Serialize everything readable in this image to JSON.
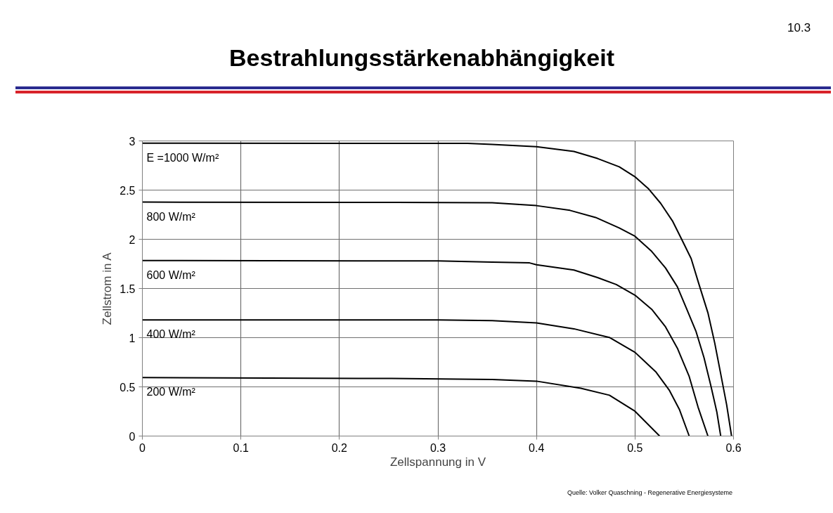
{
  "chart_data": {
    "type": "line",
    "title": "Bestrahlungsstärkenabhängigkeit",
    "xlabel": "Zellspannung in V",
    "ylabel": "Zellstrom in A",
    "xlim": [
      0,
      0.6
    ],
    "ylim": [
      0,
      3
    ],
    "xticks": [
      0,
      0.1,
      0.2,
      0.3,
      0.4,
      0.5,
      0.6
    ],
    "yticks": [
      0,
      0.5,
      1,
      1.5,
      2,
      2.5,
      3
    ],
    "grid": true,
    "line_style": "solid",
    "marker": "none",
    "series": [
      {
        "color": "#000000",
        "x": [
          0,
          0.33,
          0.355,
          0.4,
          0.438,
          0.462,
          0.484,
          0.5,
          0.514,
          0.526,
          0.538,
          0.547,
          0.557,
          0.565,
          0.574,
          0.581,
          0.587,
          0.593,
          0.598
        ],
        "values": [
          2.977,
          2.975,
          2.965,
          2.941,
          2.893,
          2.821,
          2.737,
          2.635,
          2.51,
          2.366,
          2.187,
          2.007,
          1.804,
          1.54,
          1.253,
          0.942,
          0.631,
          0.319,
          0
        ]
      },
      {
        "color": "#000000",
        "x": [
          0,
          0.257,
          0.355,
          0.4,
          0.434,
          0.46,
          0.484,
          0.5,
          0.517,
          0.531,
          0.543,
          0.552,
          0.562,
          0.57,
          0.577,
          0.583,
          0.587
        ],
        "values": [
          2.378,
          2.375,
          2.371,
          2.342,
          2.294,
          2.222,
          2.115,
          2.031,
          1.876,
          1.708,
          1.517,
          1.302,
          1.061,
          0.798,
          0.51,
          0.247,
          0
        ]
      },
      {
        "color": "#000000",
        "x": [
          0,
          0.3,
          0.355,
          0.393,
          0.4,
          0.438,
          0.462,
          0.481,
          0.5,
          0.517,
          0.531,
          0.543,
          0.555,
          0.564,
          0.574
        ],
        "values": [
          1.784,
          1.78,
          1.767,
          1.76,
          1.741,
          1.688,
          1.611,
          1.54,
          1.432,
          1.288,
          1.109,
          0.893,
          0.606,
          0.294,
          0
        ]
      },
      {
        "color": "#000000",
        "x": [
          0,
          0.3,
          0.355,
          0.4,
          0.438,
          0.474,
          0.5,
          0.521,
          0.535,
          0.545,
          0.555
        ],
        "values": [
          1.181,
          1.18,
          1.174,
          1.15,
          1.09,
          1.002,
          0.851,
          0.654,
          0.463,
          0.272,
          0
        ]
      },
      {
        "color": "#000000",
        "x": [
          0,
          0.253,
          0.355,
          0.4,
          0.445,
          0.474,
          0.5,
          0.525
        ],
        "values": [
          0.594,
          0.585,
          0.575,
          0.558,
          0.486,
          0.415,
          0.252,
          0
        ]
      }
    ],
    "annotations": [
      "10.3",
      "E =1000 W/m²",
      "800 W/m²",
      "600 W/m²",
      "400 W/m²",
      "200 W/m²",
      "Quelle: Volker Quaschning - Regenerative Energiesysteme"
    ]
  }
}
